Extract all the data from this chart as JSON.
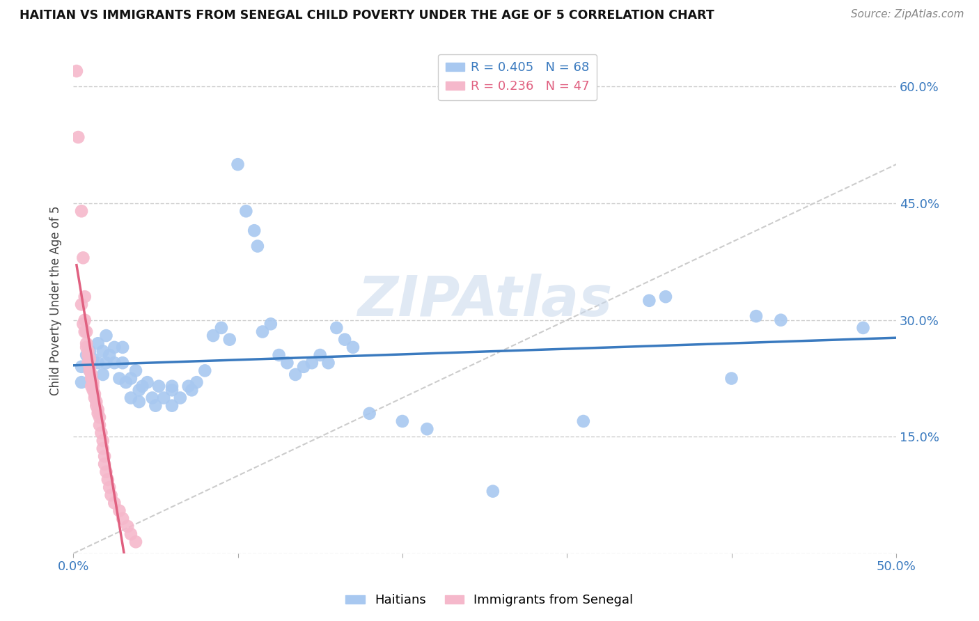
{
  "title": "HAITIAN VS IMMIGRANTS FROM SENEGAL CHILD POVERTY UNDER THE AGE OF 5 CORRELATION CHART",
  "source": "Source: ZipAtlas.com",
  "ylabel": "Child Poverty Under the Age of 5",
  "xlim": [
    0.0,
    0.5
  ],
  "ylim": [
    0.0,
    0.65
  ],
  "haitian_R": 0.405,
  "haitian_N": 68,
  "senegal_R": 0.236,
  "senegal_N": 47,
  "haitian_color": "#a8c8f0",
  "senegal_color": "#f5b8cb",
  "haitian_line_color": "#3a7abf",
  "senegal_line_color": "#e06080",
  "watermark": "ZIPAtlas",
  "background_color": "#ffffff",
  "grid_color": "#cccccc",
  "haitian_scatter": [
    [
      0.005,
      0.22
    ],
    [
      0.005,
      0.24
    ],
    [
      0.008,
      0.255
    ],
    [
      0.01,
      0.235
    ],
    [
      0.01,
      0.26
    ],
    [
      0.012,
      0.25
    ],
    [
      0.015,
      0.27
    ],
    [
      0.015,
      0.245
    ],
    [
      0.018,
      0.23
    ],
    [
      0.018,
      0.26
    ],
    [
      0.02,
      0.28
    ],
    [
      0.02,
      0.245
    ],
    [
      0.022,
      0.255
    ],
    [
      0.025,
      0.245
    ],
    [
      0.025,
      0.265
    ],
    [
      0.028,
      0.225
    ],
    [
      0.03,
      0.265
    ],
    [
      0.03,
      0.245
    ],
    [
      0.032,
      0.22
    ],
    [
      0.035,
      0.2
    ],
    [
      0.035,
      0.225
    ],
    [
      0.038,
      0.235
    ],
    [
      0.04,
      0.195
    ],
    [
      0.04,
      0.21
    ],
    [
      0.042,
      0.215
    ],
    [
      0.045,
      0.22
    ],
    [
      0.048,
      0.2
    ],
    [
      0.05,
      0.19
    ],
    [
      0.052,
      0.215
    ],
    [
      0.055,
      0.2
    ],
    [
      0.06,
      0.215
    ],
    [
      0.06,
      0.19
    ],
    [
      0.06,
      0.21
    ],
    [
      0.065,
      0.2
    ],
    [
      0.07,
      0.215
    ],
    [
      0.072,
      0.21
    ],
    [
      0.075,
      0.22
    ],
    [
      0.08,
      0.235
    ],
    [
      0.085,
      0.28
    ],
    [
      0.09,
      0.29
    ],
    [
      0.095,
      0.275
    ],
    [
      0.1,
      0.5
    ],
    [
      0.105,
      0.44
    ],
    [
      0.11,
      0.415
    ],
    [
      0.112,
      0.395
    ],
    [
      0.115,
      0.285
    ],
    [
      0.12,
      0.295
    ],
    [
      0.125,
      0.255
    ],
    [
      0.13,
      0.245
    ],
    [
      0.135,
      0.23
    ],
    [
      0.14,
      0.24
    ],
    [
      0.145,
      0.245
    ],
    [
      0.15,
      0.255
    ],
    [
      0.155,
      0.245
    ],
    [
      0.16,
      0.29
    ],
    [
      0.165,
      0.275
    ],
    [
      0.17,
      0.265
    ],
    [
      0.18,
      0.18
    ],
    [
      0.2,
      0.17
    ],
    [
      0.215,
      0.16
    ],
    [
      0.255,
      0.08
    ],
    [
      0.31,
      0.17
    ],
    [
      0.35,
      0.325
    ],
    [
      0.36,
      0.33
    ],
    [
      0.4,
      0.225
    ],
    [
      0.415,
      0.305
    ],
    [
      0.43,
      0.3
    ],
    [
      0.48,
      0.29
    ]
  ],
  "senegal_scatter": [
    [
      0.002,
      0.62
    ],
    [
      0.003,
      0.535
    ],
    [
      0.005,
      0.44
    ],
    [
      0.005,
      0.32
    ],
    [
      0.006,
      0.38
    ],
    [
      0.006,
      0.295
    ],
    [
      0.007,
      0.285
    ],
    [
      0.007,
      0.33
    ],
    [
      0.007,
      0.3
    ],
    [
      0.008,
      0.27
    ],
    [
      0.008,
      0.285
    ],
    [
      0.008,
      0.265
    ],
    [
      0.009,
      0.26
    ],
    [
      0.009,
      0.255
    ],
    [
      0.009,
      0.245
    ],
    [
      0.01,
      0.24
    ],
    [
      0.01,
      0.235
    ],
    [
      0.01,
      0.25
    ],
    [
      0.011,
      0.23
    ],
    [
      0.011,
      0.225
    ],
    [
      0.011,
      0.215
    ],
    [
      0.012,
      0.22
    ],
    [
      0.012,
      0.215
    ],
    [
      0.012,
      0.21
    ],
    [
      0.013,
      0.205
    ],
    [
      0.013,
      0.2
    ],
    [
      0.014,
      0.195
    ],
    [
      0.014,
      0.19
    ],
    [
      0.015,
      0.185
    ],
    [
      0.015,
      0.18
    ],
    [
      0.016,
      0.175
    ],
    [
      0.016,
      0.165
    ],
    [
      0.017,
      0.155
    ],
    [
      0.018,
      0.145
    ],
    [
      0.018,
      0.135
    ],
    [
      0.019,
      0.125
    ],
    [
      0.019,
      0.115
    ],
    [
      0.02,
      0.105
    ],
    [
      0.021,
      0.095
    ],
    [
      0.022,
      0.085
    ],
    [
      0.023,
      0.075
    ],
    [
      0.025,
      0.065
    ],
    [
      0.028,
      0.055
    ],
    [
      0.03,
      0.045
    ],
    [
      0.033,
      0.035
    ],
    [
      0.035,
      0.025
    ],
    [
      0.038,
      0.015
    ]
  ]
}
